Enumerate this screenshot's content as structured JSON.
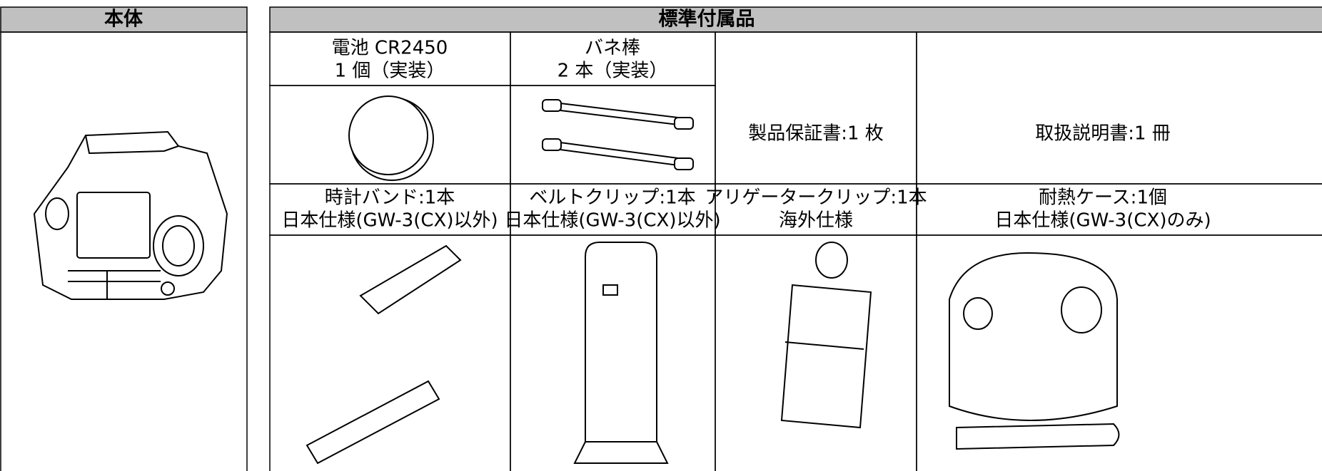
{
  "body_table": {
    "header": "本体"
  },
  "accessories_table": {
    "header": "標準付属品",
    "items": [
      {
        "lines": [
          "電池 CR2450",
          "1 個（実装）"
        ]
      },
      {
        "lines": [
          "バネ棒",
          "2 本（実装）"
        ]
      },
      {
        "lines": [
          "製品保証書:1 枚"
        ]
      },
      {
        "lines": [
          "取扱説明書:1 冊"
        ]
      },
      {
        "lines": [
          "時計バンド:1本",
          "日本仕様(GW-3(CX)以外)"
        ]
      },
      {
        "lines": [
          "ベルトクリップ:1本",
          "日本仕様(GW-3(CX)以外)"
        ]
      },
      {
        "lines": [
          "アリゲータークリップ:1本",
          "海外仕様"
        ]
      },
      {
        "lines": [
          "耐熱ケース:1個",
          "日本仕様(GW-3(CX)のみ)"
        ]
      }
    ]
  }
}
